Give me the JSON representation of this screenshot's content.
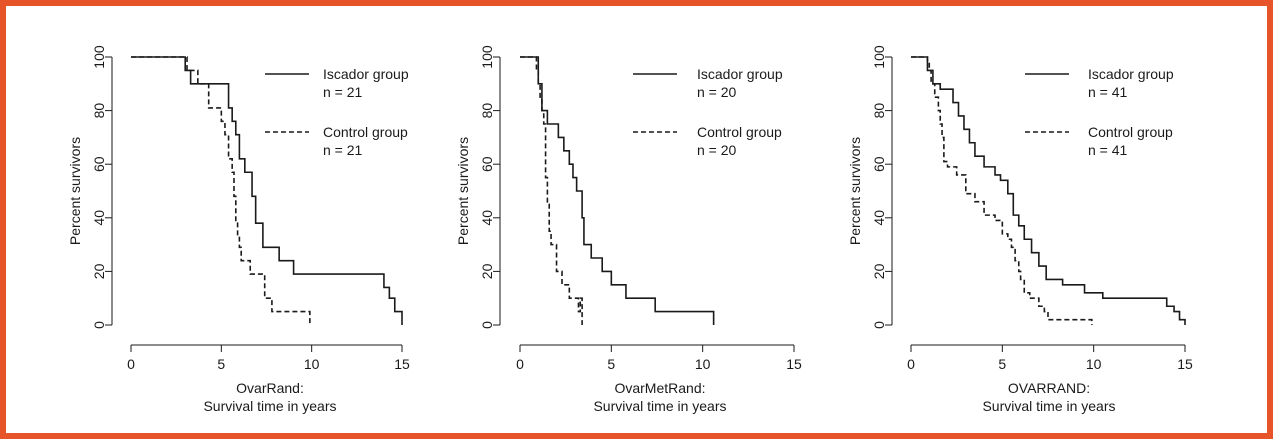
{
  "frame_color": "#e8542a",
  "chart_data": [
    {
      "type": "line",
      "subtype": "kaplan-meier step",
      "xlabel_line1": "OvarRand:",
      "xlabel_line2": "Survival time in years",
      "ylabel": "Percent survivors",
      "xlim": [
        0,
        16
      ],
      "ylim": [
        0,
        100
      ],
      "xticks": [
        0,
        5,
        10,
        15
      ],
      "yticks": [
        0,
        20,
        40,
        60,
        80,
        100
      ],
      "grid": false,
      "legend_position": "top-right",
      "series": [
        {
          "name": "Iscador group",
          "n_label": "n = 21",
          "style": "solid",
          "x": [
            0,
            3.0,
            3.3,
            5.4,
            5.6,
            5.8,
            6.0,
            6.3,
            6.7,
            6.9,
            7.3,
            8.2,
            9.0,
            14.0,
            14.3,
            14.6,
            15.0
          ],
          "y": [
            100,
            95,
            90,
            81,
            76,
            71,
            62,
            57,
            48,
            38,
            29,
            24,
            19,
            14,
            10,
            5,
            0
          ]
        },
        {
          "name": "Control group",
          "n_label": "n = 21",
          "style": "dashed",
          "x": [
            0,
            3.1,
            3.7,
            4.3,
            5.0,
            5.2,
            5.4,
            5.6,
            5.7,
            5.8,
            5.9,
            6.0,
            6.1,
            6.6,
            7.4,
            7.8,
            9.9
          ],
          "y": [
            100,
            95,
            90,
            81,
            76,
            71,
            62,
            57,
            48,
            38,
            33,
            29,
            24,
            19,
            10,
            5,
            0
          ]
        }
      ]
    },
    {
      "type": "line",
      "subtype": "kaplan-meier step",
      "xlabel_line1": "OvarMetRand:",
      "xlabel_line2": "Survival time in years",
      "ylabel": "Percent survivors",
      "xlim": [
        0,
        16
      ],
      "ylim": [
        0,
        100
      ],
      "xticks": [
        0,
        5,
        10,
        15
      ],
      "yticks": [
        0,
        20,
        40,
        60,
        80,
        100
      ],
      "grid": false,
      "legend_position": "top-right",
      "series": [
        {
          "name": "Iscador group",
          "n_label": "n = 20",
          "style": "solid",
          "x": [
            0,
            1.0,
            1.2,
            1.5,
            2.1,
            2.4,
            2.7,
            2.9,
            3.1,
            3.4,
            3.5,
            3.9,
            4.5,
            5.0,
            5.8,
            7.4,
            10.6
          ],
          "y": [
            100,
            90,
            80,
            75,
            70,
            65,
            60,
            55,
            50,
            40,
            30,
            25,
            20,
            15,
            10,
            5,
            0
          ]
        },
        {
          "name": "Control group",
          "n_label": "n = 20",
          "style": "dashed",
          "x": [
            0,
            0.9,
            1.0,
            1.1,
            1.2,
            1.3,
            1.4,
            1.5,
            1.6,
            1.7,
            2.0,
            2.3,
            2.7,
            3.2,
            3.3,
            3.4
          ],
          "y": [
            100,
            95,
            90,
            85,
            80,
            75,
            55,
            45,
            35,
            30,
            20,
            15,
            10,
            5,
            10,
            0
          ]
        }
      ]
    },
    {
      "type": "line",
      "subtype": "kaplan-meier step",
      "xlabel_line1": "OVARRAND:",
      "xlabel_line2": "Survival time in years",
      "ylabel": "Percent survivors",
      "xlim": [
        0,
        16
      ],
      "ylim": [
        0,
        100
      ],
      "xticks": [
        0,
        5,
        10,
        15
      ],
      "yticks": [
        0,
        20,
        40,
        60,
        80,
        100
      ],
      "grid": false,
      "legend_position": "top-right",
      "series": [
        {
          "name": "Iscador group",
          "n_label": "n = 41",
          "style": "solid",
          "x": [
            0,
            0.9,
            1.2,
            1.6,
            2.3,
            2.6,
            2.9,
            3.2,
            3.5,
            4.0,
            4.6,
            4.9,
            5.3,
            5.6,
            5.9,
            6.2,
            6.6,
            7.0,
            7.4,
            8.3,
            9.5,
            10.5,
            14.0,
            14.4,
            14.7,
            15.0
          ],
          "y": [
            100,
            95,
            90,
            88,
            83,
            78,
            73,
            68,
            63,
            59,
            56,
            54,
            49,
            41,
            37,
            32,
            27,
            22,
            17,
            15,
            12,
            10,
            7,
            5,
            2,
            0
          ]
        },
        {
          "name": "Control group",
          "n_label": "n = 41",
          "style": "dashed",
          "x": [
            0,
            0.9,
            1.0,
            1.1,
            1.3,
            1.5,
            1.6,
            1.7,
            1.8,
            2.0,
            2.5,
            3.0,
            3.5,
            4.0,
            4.6,
            5.0,
            5.3,
            5.5,
            5.7,
            5.9,
            6.0,
            6.2,
            6.5,
            7.0,
            7.3,
            7.5,
            9.9
          ],
          "y": [
            100,
            98,
            95,
            90,
            85,
            80,
            75,
            70,
            61,
            59,
            56,
            49,
            46,
            41,
            39,
            34,
            32,
            29,
            24,
            20,
            17,
            12,
            10,
            7,
            5,
            2,
            0
          ]
        }
      ]
    }
  ]
}
